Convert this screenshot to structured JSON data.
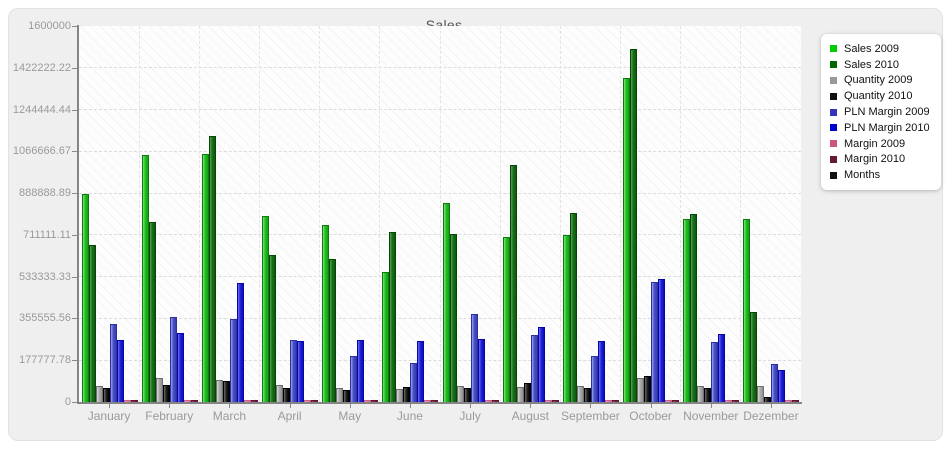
{
  "panel": {
    "background": "#efefef",
    "border": "#e2e2e2"
  },
  "chart_data": {
    "type": "bar",
    "title": "Sales",
    "xlabel": "",
    "ylabel": "",
    "ylim": [
      0,
      1600000
    ],
    "grid": "dashed",
    "legend_position": "top-right",
    "plot_hatch": true,
    "y_ticks": [
      {
        "label": "0",
        "value": 0
      },
      {
        "label": "177777.78",
        "value": 177777.78
      },
      {
        "label": "355555.56",
        "value": 355555.56
      },
      {
        "label": "533333.33",
        "value": 533333.33
      },
      {
        "label": "711111.11",
        "value": 711111.11
      },
      {
        "label": "888888.89",
        "value": 888888.89
      },
      {
        "label": "1066666.67",
        "value": 1066666.67
      },
      {
        "label": "1244444.44",
        "value": 1244444.44
      },
      {
        "label": "1422222.22",
        "value": 1422222.22
      },
      {
        "label": "1600000",
        "value": 1600000
      }
    ],
    "categories": [
      "January",
      "February",
      "March",
      "April",
      "May",
      "June",
      "July",
      "August",
      "September",
      "October",
      "November",
      "Dezember"
    ],
    "series": [
      {
        "name": "Sales 2009",
        "key": "sales-2009",
        "colors": {
          "light": "#7fe07f",
          "mid": "#1fc11f",
          "dark": "#12a012",
          "border": "#0c7a0c"
        },
        "values": [
          885000,
          1050000,
          1055000,
          790000,
          755000,
          555000,
          845000,
          700000,
          710000,
          1380000,
          780000,
          780000
        ]
      },
      {
        "name": "Sales 2010",
        "key": "sales-2010",
        "colors": {
          "light": "#55a055",
          "mid": "#187218",
          "dark": "#0d5a0d",
          "border": "#094409"
        },
        "values": [
          670000,
          765000,
          1130000,
          625000,
          610000,
          725000,
          715000,
          1010000,
          805000,
          1500000,
          800000,
          385000
        ]
      },
      {
        "name": "Quantity 2009",
        "key": "quantity-2009",
        "colors": {
          "light": "#d8d8d8",
          "mid": "#ababab",
          "dark": "#909090",
          "border": "#6f6f6f"
        },
        "values": [
          70000,
          100000,
          95000,
          72000,
          60000,
          55000,
          70000,
          65000,
          70000,
          100000,
          70000,
          70000
        ]
      },
      {
        "name": "Quantity 2010",
        "key": "quantity-2010",
        "colors": {
          "light": "#6a6a6a",
          "mid": "#222222",
          "dark": "#000000",
          "border": "#000000"
        },
        "values": [
          58000,
          72000,
          90000,
          60000,
          52000,
          65000,
          60000,
          80000,
          58000,
          110000,
          58000,
          20000
        ]
      },
      {
        "name": "PLN Margin 2009",
        "key": "pln-margin-2009",
        "colors": {
          "light": "#9aa2e8",
          "mid": "#4a52c8",
          "dark": "#353cab",
          "border": "#2b31a0"
        },
        "values": [
          330000,
          360000,
          355000,
          265000,
          195000,
          165000,
          375000,
          285000,
          195000,
          510000,
          255000,
          160000
        ]
      },
      {
        "name": "PLN Margin 2010",
        "key": "pln-margin-2010",
        "colors": {
          "light": "#7070f5",
          "mid": "#2222d8",
          "dark": "#0d0dbb",
          "border": "#0606a5"
        },
        "values": [
          265000,
          295000,
          505000,
          258000,
          265000,
          260000,
          268000,
          318000,
          258000,
          525000,
          290000,
          138000
        ]
      },
      {
        "name": "Margin 2009",
        "key": "margin-2009",
        "colors": {
          "light": "#f6a0bd",
          "mid": "#f080a8",
          "dark": "#d86a92",
          "border": "#c85f8a"
        },
        "values": [
          8000,
          8000,
          8000,
          7000,
          7000,
          6000,
          7000,
          7000,
          7000,
          9000,
          7000,
          7000
        ]
      },
      {
        "name": "Margin 2010",
        "key": "margin-2010",
        "colors": {
          "light": "#9a4060",
          "mid": "#7d2547",
          "dark": "#651733",
          "border": "#5c1530"
        },
        "values": [
          6000,
          9000,
          9000,
          6000,
          6000,
          7000,
          6000,
          9000,
          7000,
          10000,
          7000,
          4000
        ]
      }
    ],
    "legend": {
      "items": [
        {
          "label": "Sales 2009",
          "swatch": "#00cc00"
        },
        {
          "label": "Sales 2010",
          "swatch": "#006600"
        },
        {
          "label": "Quantity 2009",
          "swatch": "#999999"
        },
        {
          "label": "Quantity 2010",
          "swatch": "#111111"
        },
        {
          "label": "PLN Margin 2009",
          "swatch": "#3333bb"
        },
        {
          "label": "PLN Margin 2010",
          "swatch": "#0000cc"
        },
        {
          "label": "Margin 2009",
          "swatch": "#cc5580"
        },
        {
          "label": "Margin 2010",
          "swatch": "#661a38"
        },
        {
          "label": "Months",
          "swatch": "#111111"
        }
      ]
    }
  }
}
